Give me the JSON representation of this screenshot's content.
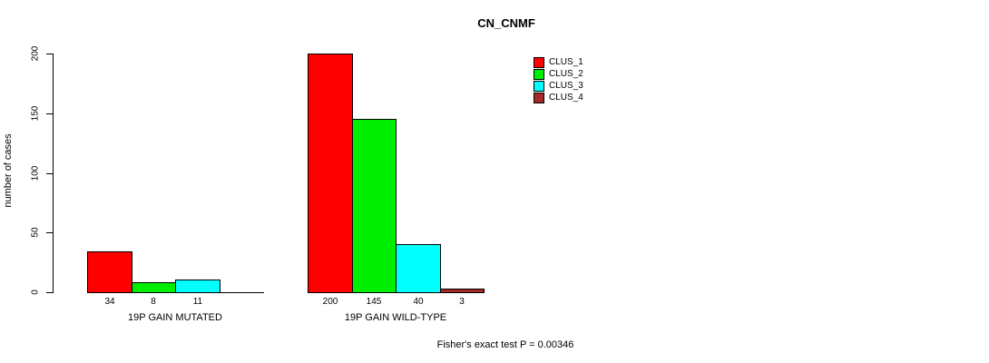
{
  "chart_data": {
    "type": "bar",
    "title": "CN_CNMF",
    "ylabel": "number of cases",
    "xlabel": "",
    "ylim": [
      0,
      200
    ],
    "yticks": [
      0,
      50,
      100,
      150,
      200
    ],
    "grid": false,
    "legend_position": "top-right",
    "series": [
      {
        "name": "CLUS_1",
        "color": "#FF0000"
      },
      {
        "name": "CLUS_2",
        "color": "#00EE00"
      },
      {
        "name": "CLUS_3",
        "color": "#00FFFF"
      },
      {
        "name": "CLUS_4",
        "color": "#A52A2A"
      }
    ],
    "groups": [
      {
        "label": "19P GAIN MUTATED",
        "values": [
          34,
          8,
          11,
          0
        ],
        "bar_labels": [
          "34",
          "8",
          "11",
          ""
        ]
      },
      {
        "label": "19P GAIN WILD-TYPE",
        "values": [
          200,
          145,
          40,
          3
        ],
        "bar_labels": [
          "200",
          "145",
          "40",
          "3"
        ]
      }
    ],
    "annotation": "Fisher's exact test P = 0.00346"
  }
}
